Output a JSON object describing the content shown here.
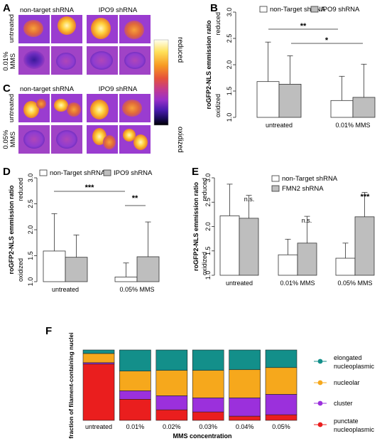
{
  "panel_letters": {
    "A": "A",
    "B": "B",
    "C": "C",
    "D": "D",
    "E": "E",
    "F": "F"
  },
  "micro": {
    "A": {
      "col_left": "non-target shRNA",
      "col_right": "IPO9 shRNA",
      "row_top": "untreated",
      "row_bottom_1": "0.01%",
      "row_bottom_2": "MMS"
    },
    "C": {
      "col_left": "non-target shRNA",
      "col_right": "IPO9 shRNA",
      "row_top": "untreated",
      "row_bottom_1": "0.05%",
      "row_bottom_2": "MMS"
    },
    "colorbar": {
      "top_label": "reduced",
      "bottom_label": "oxidized"
    }
  },
  "colors": {
    "white_bar": "#ffffff",
    "grey_bar": "#bebebe",
    "elongated": "#138f8a",
    "nucleolar": "#f6a81c",
    "cluster": "#9b30dc",
    "punctate": "#ea1e1e"
  },
  "chart_data": [
    {
      "id": "B",
      "type": "bar",
      "ylabel": "roGFP2-NLS emmission ratio",
      "ylabel_top": "reduced",
      "ylabel_bottom": "oxidized",
      "ylim": [
        1.0,
        3.0
      ],
      "yticks": [
        "1.0",
        "1.5",
        "2.0",
        "2.5",
        "3.0"
      ],
      "categories": [
        "untreated",
        "0.01% MMS"
      ],
      "legend": [
        "non-Target shRNA",
        "IPO9 shRNA"
      ],
      "series": [
        {
          "name": "non-Target shRNA",
          "values": [
            1.68,
            1.32
          ],
          "err": [
            2.43,
            1.78
          ]
        },
        {
          "name": "IPO9 shRNA",
          "values": [
            1.63,
            1.38
          ],
          "err": [
            2.17,
            2.01
          ]
        }
      ],
      "sig": [
        "**",
        "*"
      ]
    },
    {
      "id": "D",
      "type": "bar",
      "ylabel": "roGFP2-NLS emmission ratio",
      "ylabel_top": "reduced",
      "ylabel_bottom": "oxidized",
      "ylim": [
        1.0,
        3.0
      ],
      "yticks": [
        "1.0",
        "1.5",
        "2.0",
        "2.5",
        "3.0"
      ],
      "categories": [
        "untreated",
        "0.05% MMS"
      ],
      "legend": [
        "non-Target shRNA",
        "IPO9 shRNA"
      ],
      "series": [
        {
          "name": "non-Target shRNA",
          "values": [
            1.59,
            1.09
          ],
          "err": [
            2.31,
            1.36
          ]
        },
        {
          "name": "IPO9 shRNA",
          "values": [
            1.47,
            1.48
          ],
          "err": [
            1.9,
            2.15
          ]
        }
      ],
      "sig": [
        "***",
        "**"
      ]
    },
    {
      "id": "E",
      "type": "bar",
      "ylabel": "roGFP2-NLS emmission ratio",
      "ylabel_top": "reduced",
      "ylabel_bottom": "oxidized",
      "ylim": [
        1.0,
        3.0
      ],
      "yticks": [
        "1.0",
        "1.5",
        "2.0",
        "2.5",
        "3.0"
      ],
      "categories": [
        "untreated",
        "0.01% MMS",
        "0.05% MMS"
      ],
      "legend": [
        "non-Target shRNA",
        "FMN2 shRNA"
      ],
      "series": [
        {
          "name": "non-Target shRNA",
          "values": [
            2.22,
            1.42,
            1.35
          ],
          "err": [
            2.87,
            1.74,
            1.66
          ]
        },
        {
          "name": "FMN2 shRNA",
          "values": [
            2.17,
            1.66,
            2.2
          ],
          "err": [
            2.64,
            2.21,
            2.7
          ]
        }
      ],
      "sig": [
        "n.s.",
        "n.s.",
        "***"
      ]
    },
    {
      "id": "F",
      "type": "bar",
      "stacked": true,
      "xlabel": "MMS concentration",
      "ylabel": "fraction of filament-containing nuclei",
      "categories": [
        "untreated",
        "0.01%",
        "0.02%",
        "0.03%",
        "0.04%",
        "0.05%"
      ],
      "series": [
        {
          "name": "punctate nucleoplasmic",
          "values": [
            0.8,
            0.3,
            0.15,
            0.12,
            0.06,
            0.08
          ]
        },
        {
          "name": "cluster",
          "values": [
            0.02,
            0.12,
            0.2,
            0.2,
            0.26,
            0.29
          ]
        },
        {
          "name": "nucleolar",
          "values": [
            0.13,
            0.28,
            0.36,
            0.39,
            0.4,
            0.38
          ]
        },
        {
          "name": "elongated nucleoplasmic",
          "values": [
            0.05,
            0.3,
            0.29,
            0.29,
            0.28,
            0.25
          ]
        }
      ],
      "legend": [
        {
          "l1": "elongated",
          "l2": "nucleoplasmic"
        },
        {
          "l1": "nucleolar",
          "l2": ""
        },
        {
          "l1": "cluster",
          "l2": ""
        },
        {
          "l1": "punctate",
          "l2": "nucleoplasmic"
        }
      ]
    }
  ]
}
